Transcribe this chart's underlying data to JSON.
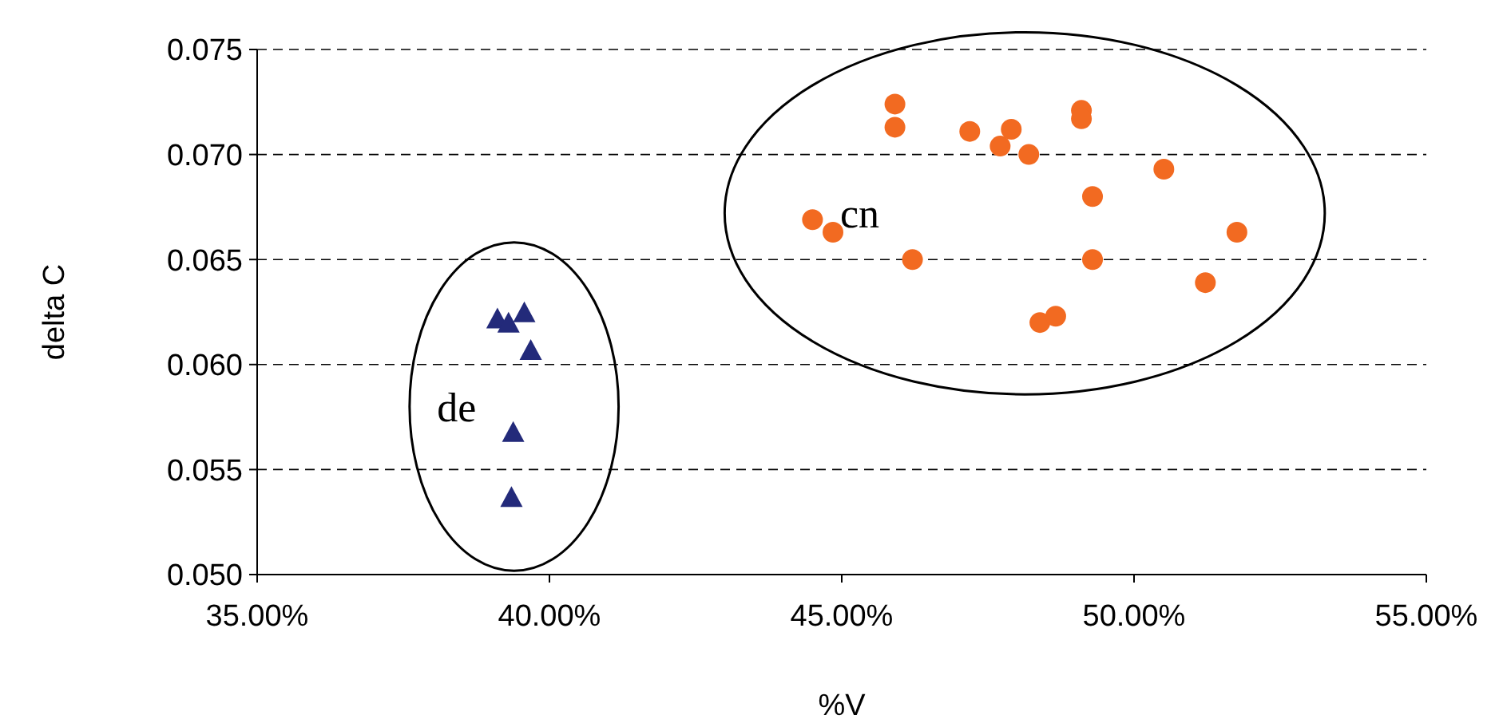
{
  "chart_data": {
    "type": "scatter",
    "xlabel": "%V",
    "ylabel": "delta C",
    "xlim": [
      0.35,
      0.55
    ],
    "xticks": [
      {
        "value": 0.35,
        "label": "35.00%"
      },
      {
        "value": 0.4,
        "label": "40.00%"
      },
      {
        "value": 0.45,
        "label": "45.00%"
      },
      {
        "value": 0.5,
        "label": "50.00%"
      },
      {
        "value": 0.55,
        "label": "55.00%"
      }
    ],
    "ylim": [
      0.05,
      0.075
    ],
    "yticks": [
      {
        "value": 0.05,
        "label": "0.050"
      },
      {
        "value": 0.055,
        "label": "0.055"
      },
      {
        "value": 0.06,
        "label": "0.060"
      },
      {
        "value": 0.065,
        "label": "0.065"
      },
      {
        "value": 0.07,
        "label": "0.070"
      },
      {
        "value": 0.075,
        "label": "0.075"
      }
    ],
    "grid": "y",
    "series": [
      {
        "color": "#232a7a",
        "marker": "triangle",
        "x": [
          0.3911,
          0.393,
          0.3957,
          0.3968,
          0.3938,
          0.3935
        ],
        "values": [
          0.0621,
          0.0619,
          0.0624,
          0.0606,
          0.0567,
          0.0536
        ]
      },
      {
        "color": "#f26a21",
        "marker": "circle",
        "x": [
          0.445,
          0.4485,
          0.4591,
          0.4591,
          0.4621,
          0.4719,
          0.4771,
          0.479,
          0.482,
          0.4839,
          0.4866,
          0.491,
          0.491,
          0.4929,
          0.4929,
          0.5051,
          0.5122,
          0.5176
        ],
        "values": [
          0.0669,
          0.0663,
          0.0724,
          0.0713,
          0.065,
          0.0711,
          0.0704,
          0.0712,
          0.07,
          0.062,
          0.0623,
          0.0721,
          0.0717,
          0.068,
          0.065,
          0.0693,
          0.0639,
          0.0663
        ]
      }
    ],
    "annotations": [
      "de",
      "cn"
    ]
  }
}
